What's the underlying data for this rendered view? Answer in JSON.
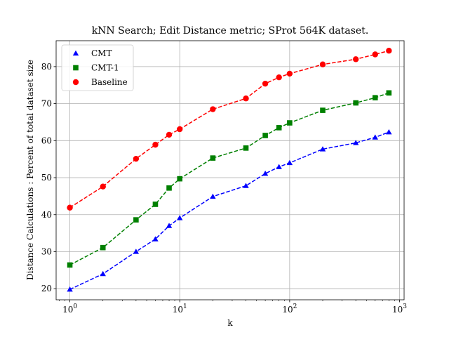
{
  "chart_data": {
    "type": "line",
    "title": "kNN Search; Edit Distance metric; SProt 564K dataset.",
    "xlabel": "k",
    "ylabel": "Distance Calculations : Percent of total dataset size",
    "x_scale": "log",
    "xlim": [
      0.75,
      1100
    ],
    "ylim": [
      17,
      87
    ],
    "x_ticks": [
      {
        "value": 1,
        "base": "10",
        "exp": "0"
      },
      {
        "value": 10,
        "base": "10",
        "exp": "1"
      },
      {
        "value": 100,
        "base": "10",
        "exp": "2"
      },
      {
        "value": 1000,
        "base": "10",
        "exp": "3"
      }
    ],
    "y_ticks": [
      20,
      30,
      40,
      50,
      60,
      70,
      80
    ],
    "grid": true,
    "legend_position": "top-left",
    "x": [
      1,
      2,
      4,
      6,
      8,
      10,
      20,
      40,
      60,
      80,
      100,
      200,
      400,
      600,
      800
    ],
    "series": [
      {
        "name": "CMT",
        "color": "#0000ff",
        "marker": "triangle",
        "values": [
          19.8,
          24.0,
          30.0,
          33.4,
          37.0,
          39.1,
          44.9,
          47.8,
          51.1,
          52.9,
          54.0,
          57.7,
          59.4,
          60.9,
          62.3
        ]
      },
      {
        "name": "CMT-1",
        "color": "#008000",
        "marker": "square",
        "values": [
          26.4,
          31.1,
          38.6,
          42.8,
          47.2,
          49.7,
          55.3,
          58.0,
          61.4,
          63.5,
          64.8,
          68.2,
          70.2,
          71.6,
          72.9
        ]
      },
      {
        "name": "Baseline",
        "color": "#ff0000",
        "marker": "circle",
        "values": [
          41.9,
          47.6,
          55.1,
          58.9,
          61.6,
          63.1,
          68.5,
          71.4,
          75.4,
          77.1,
          78.1,
          80.6,
          82.0,
          83.3,
          84.3
        ]
      }
    ]
  }
}
